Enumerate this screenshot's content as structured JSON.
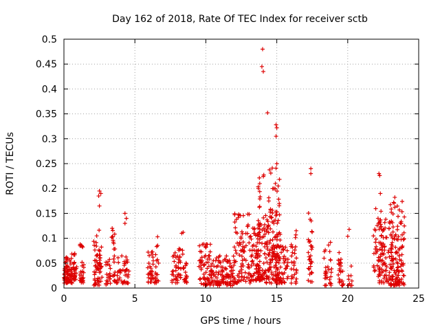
{
  "chart_data": {
    "type": "scatter",
    "title": "Day 162 of 2018, Rate Of TEC Index for receiver sctb",
    "xlabel": "GPS time / hours",
    "ylabel": "ROTI / TECUs",
    "xlim": [
      0,
      25
    ],
    "ylim": [
      0,
      0.5
    ],
    "xticks": [
      0,
      5,
      10,
      15,
      20,
      25
    ],
    "xtick_labels": [
      "0",
      "5",
      "10",
      "15",
      "20",
      "25"
    ],
    "yticks": [
      0,
      0.05,
      0.1,
      0.15,
      0.2,
      0.25,
      0.3,
      0.35,
      0.4,
      0.45,
      0.5
    ],
    "ytick_labels": [
      "0",
      "0.05",
      "0.1",
      "0.15",
      "0.2",
      "0.25",
      "0.3",
      "0.35",
      "0.4",
      "0.45",
      "0.5"
    ],
    "grid": true,
    "legend": "none",
    "marker": "plus",
    "marker_color": "#dd0000",
    "series": [
      {
        "name": "ROTI",
        "clusters": [
          {
            "x": [
              0.0,
              0.5
            ],
            "y": [
              0.01,
              0.065
            ],
            "n": 60
          },
          {
            "x": [
              0.4,
              0.9
            ],
            "y": [
              0.01,
              0.07
            ],
            "n": 45
          },
          {
            "x": [
              1.1,
              1.4
            ],
            "y": [
              0.01,
              0.09
            ],
            "n": 30
          },
          {
            "x": [
              2.1,
              2.7
            ],
            "y": [
              0.005,
              0.12
            ],
            "n": 60
          },
          {
            "x": [
              2.9,
              3.3
            ],
            "y": [
              0.005,
              0.06
            ],
            "n": 20
          },
          {
            "x": [
              3.3,
              3.6
            ],
            "y": [
              0.01,
              0.12
            ],
            "n": 20
          },
          {
            "x": [
              3.7,
              4.6
            ],
            "y": [
              0.01,
              0.065
            ],
            "n": 45
          },
          {
            "x": [
              5.9,
              6.3
            ],
            "y": [
              0.01,
              0.075
            ],
            "n": 30
          },
          {
            "x": [
              6.4,
              6.7
            ],
            "y": [
              0.01,
              0.1
            ],
            "n": 18
          },
          {
            "x": [
              7.6,
              8.7
            ],
            "y": [
              0.01,
              0.08
            ],
            "n": 60
          },
          {
            "x": [
              9.5,
              10.4
            ],
            "y": [
              0.005,
              0.09
            ],
            "n": 70
          },
          {
            "x": [
              10.4,
              12.0
            ],
            "y": [
              0.005,
              0.065
            ],
            "n": 110
          },
          {
            "x": [
              12.0,
              13.2
            ],
            "y": [
              0.01,
              0.15
            ],
            "n": 90
          },
          {
            "x": [
              13.2,
              14.0
            ],
            "y": [
              0.015,
              0.13
            ],
            "n": 70
          },
          {
            "x": [
              13.6,
              14.1
            ],
            "y": [
              0.02,
              0.23
            ],
            "n": 45
          },
          {
            "x": [
              14.1,
              15.2
            ],
            "y": [
              0.01,
              0.16
            ],
            "n": 110
          },
          {
            "x": [
              14.4,
              15.2
            ],
            "y": [
              0.05,
              0.25
            ],
            "n": 40
          },
          {
            "x": [
              15.0,
              15.8
            ],
            "y": [
              0.01,
              0.11
            ],
            "n": 55
          },
          {
            "x": [
              16.0,
              16.4
            ],
            "y": [
              0.01,
              0.12
            ],
            "n": 30
          },
          {
            "x": [
              17.2,
              17.5
            ],
            "y": [
              0.01,
              0.16
            ],
            "n": 30
          },
          {
            "x": [
              18.3,
              18.9
            ],
            "y": [
              0.005,
              0.1
            ],
            "n": 30
          },
          {
            "x": [
              19.3,
              19.7
            ],
            "y": [
              0.005,
              0.09
            ],
            "n": 25
          },
          {
            "x": [
              20.0,
              20.3
            ],
            "y": [
              0.005,
              0.12
            ],
            "n": 10
          },
          {
            "x": [
              21.8,
              22.4
            ],
            "y": [
              0.02,
              0.16
            ],
            "n": 40
          },
          {
            "x": [
              22.2,
              23.2
            ],
            "y": [
              0.01,
              0.14
            ],
            "n": 80
          },
          {
            "x": [
              23.0,
              24.0
            ],
            "y": [
              0.005,
              0.185
            ],
            "n": 120
          }
        ],
        "points": [
          {
            "x": 2.5,
            "y": 0.195
          },
          {
            "x": 2.45,
            "y": 0.185
          },
          {
            "x": 2.6,
            "y": 0.19
          },
          {
            "x": 2.5,
            "y": 0.165
          },
          {
            "x": 3.4,
            "y": 0.12
          },
          {
            "x": 4.3,
            "y": 0.15
          },
          {
            "x": 4.4,
            "y": 0.14
          },
          {
            "x": 4.3,
            "y": 0.13
          },
          {
            "x": 6.6,
            "y": 0.103
          },
          {
            "x": 8.3,
            "y": 0.11
          },
          {
            "x": 8.4,
            "y": 0.112
          },
          {
            "x": 14.0,
            "y": 0.48
          },
          {
            "x": 13.95,
            "y": 0.445
          },
          {
            "x": 14.05,
            "y": 0.435
          },
          {
            "x": 14.35,
            "y": 0.352
          },
          {
            "x": 14.95,
            "y": 0.328
          },
          {
            "x": 15.0,
            "y": 0.322
          },
          {
            "x": 14.95,
            "y": 0.305
          },
          {
            "x": 15.0,
            "y": 0.25
          },
          {
            "x": 14.9,
            "y": 0.21
          },
          {
            "x": 17.4,
            "y": 0.24
          },
          {
            "x": 17.4,
            "y": 0.23
          },
          {
            "x": 22.2,
            "y": 0.23
          },
          {
            "x": 22.25,
            "y": 0.226
          },
          {
            "x": 22.3,
            "y": 0.19
          },
          {
            "x": 20.1,
            "y": 0.118
          },
          {
            "x": 20.0,
            "y": 0.104
          },
          {
            "x": 13.8,
            "y": 0.21
          },
          {
            "x": 15.1,
            "y": 0.205
          },
          {
            "x": 14.8,
            "y": 0.2
          },
          {
            "x": 13.7,
            "y": 0.2
          }
        ]
      }
    ]
  }
}
